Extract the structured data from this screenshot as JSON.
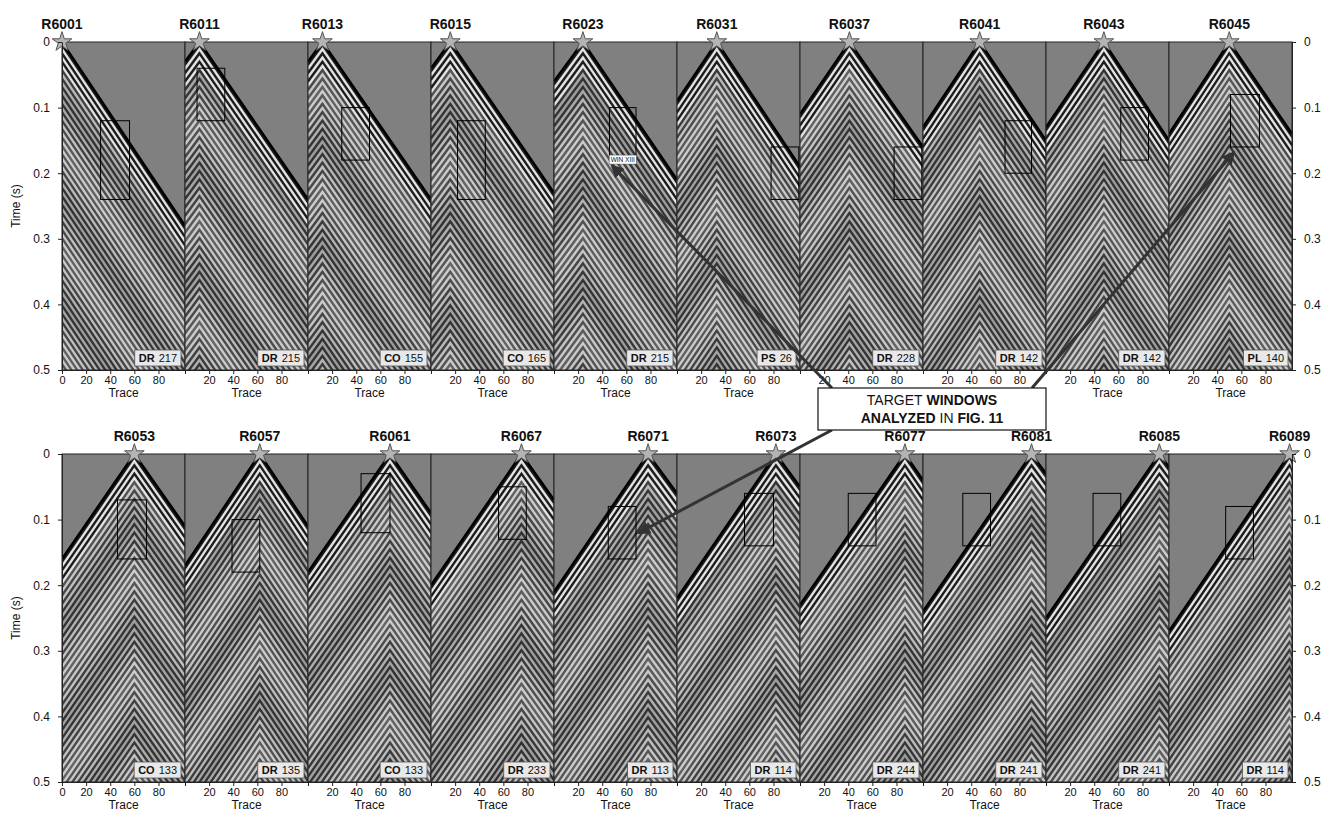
{
  "chart_data": {
    "type": "seismic_gathers",
    "xlabel": "Trace",
    "ylabel": "Time (s)",
    "xlim": [
      0,
      102
    ],
    "ylim": [
      0,
      0.5
    ],
    "xticks": [
      0,
      20,
      40,
      60,
      80
    ],
    "yticks": [
      0,
      0.1,
      0.2,
      0.3,
      0.4,
      0.5
    ],
    "panels": [
      {
        "title": "R6001",
        "source_trace": 0,
        "code": "DR",
        "number": 217,
        "first_break": {
          "x": [
            0,
            0,
            102
          ],
          "values": [
            0,
            0,
            0.28
          ]
        },
        "window": {
          "traces": [
            32,
            56
          ],
          "times": [
            0.12,
            0.24
          ]
        }
      },
      {
        "title": "R6011",
        "source_trace": 12,
        "code": "DR",
        "number": 215,
        "first_break": {
          "x": [
            0,
            12,
            102
          ],
          "values": [
            0.03,
            0,
            0.24
          ]
        },
        "window": {
          "traces": [
            10,
            33
          ],
          "times": [
            0.04,
            0.12
          ]
        }
      },
      {
        "title": "R6013",
        "source_trace": 12,
        "code": "CO",
        "number": 155,
        "first_break": {
          "x": [
            0,
            12,
            102
          ],
          "values": [
            0.03,
            0,
            0.24
          ]
        },
        "window": {
          "traces": [
            28,
            51
          ],
          "times": [
            0.1,
            0.18
          ]
        }
      },
      {
        "title": "R6015",
        "source_trace": 16,
        "code": "CO",
        "number": 165,
        "first_break": {
          "x": [
            0,
            16,
            102
          ],
          "values": [
            0.04,
            0,
            0.23
          ]
        },
        "window": {
          "traces": [
            22,
            45
          ],
          "times": [
            0.12,
            0.24
          ]
        }
      },
      {
        "title": "R6023",
        "source_trace": 24,
        "code": "DR",
        "number": 215,
        "first_break": {
          "x": [
            0,
            24,
            102
          ],
          "values": [
            0.06,
            0,
            0.21
          ]
        },
        "window": {
          "traces": [
            46,
            68
          ],
          "times": [
            0.1,
            0.18
          ],
          "label": "WIN XIII"
        }
      },
      {
        "title": "R6031",
        "source_trace": 33,
        "code": "PS",
        "number": 26,
        "first_break": {
          "x": [
            0,
            33,
            102
          ],
          "values": [
            0.09,
            0,
            0.19
          ]
        },
        "window": {
          "traces": [
            78,
            101
          ],
          "times": [
            0.16,
            0.24
          ]
        }
      },
      {
        "title": "R6037",
        "source_trace": 41,
        "code": "DR",
        "number": 228,
        "first_break": {
          "x": [
            0,
            41,
            102
          ],
          "values": [
            0.11,
            0,
            0.16
          ]
        },
        "window": {
          "traces": [
            78,
            101
          ],
          "times": [
            0.16,
            0.24
          ]
        }
      },
      {
        "title": "R6041",
        "source_trace": 47,
        "code": "DR",
        "number": 142,
        "first_break": {
          "x": [
            0,
            47,
            102
          ],
          "values": [
            0.13,
            0,
            0.15
          ]
        },
        "window": {
          "traces": [
            68,
            90
          ],
          "times": [
            0.12,
            0.2
          ]
        }
      },
      {
        "title": "R6043",
        "source_trace": 48,
        "code": "DR",
        "number": 142,
        "first_break": {
          "x": [
            0,
            48,
            102
          ],
          "values": [
            0.13,
            0,
            0.15
          ]
        },
        "window": {
          "traces": [
            62,
            85
          ],
          "times": [
            0.1,
            0.18
          ]
        }
      },
      {
        "title": "R6045",
        "source_trace": 50,
        "code": "PL",
        "number": 140,
        "first_break": {
          "x": [
            0,
            50,
            102
          ],
          "values": [
            0.14,
            0,
            0.14
          ]
        },
        "window": {
          "traces": [
            51,
            75
          ],
          "times": [
            0.08,
            0.16
          ]
        }
      },
      {
        "title": "R6053",
        "source_trace": 60,
        "code": "CO",
        "number": 133,
        "first_break": {
          "x": [
            0,
            60,
            102
          ],
          "values": [
            0.16,
            0,
            0.11
          ]
        },
        "window": {
          "traces": [
            46,
            70
          ],
          "times": [
            0.07,
            0.16
          ]
        }
      },
      {
        "title": "R6057",
        "source_trace": 62,
        "code": "DR",
        "number": 135,
        "first_break": {
          "x": [
            0,
            62,
            102
          ],
          "values": [
            0.17,
            0,
            0.11
          ]
        },
        "window": {
          "traces": [
            39,
            62
          ],
          "times": [
            0.1,
            0.18
          ]
        }
      },
      {
        "title": "R6061",
        "source_trace": 68,
        "code": "CO",
        "number": 133,
        "first_break": {
          "x": [
            0,
            68,
            102
          ],
          "values": [
            0.18,
            0,
            0.09
          ]
        },
        "window": {
          "traces": [
            44,
            68
          ],
          "times": [
            0.03,
            0.12
          ]
        }
      },
      {
        "title": "R6067",
        "source_trace": 75,
        "code": "DR",
        "number": 233,
        "first_break": {
          "x": [
            0,
            75,
            102
          ],
          "values": [
            0.2,
            0,
            0.07
          ]
        },
        "window": {
          "traces": [
            56,
            79
          ],
          "times": [
            0.05,
            0.13
          ]
        }
      },
      {
        "title": "R6071",
        "source_trace": 78,
        "code": "DR",
        "number": 113,
        "first_break": {
          "x": [
            0,
            78,
            102
          ],
          "values": [
            0.21,
            0,
            0.06
          ]
        },
        "window": {
          "traces": [
            45,
            68
          ],
          "times": [
            0.08,
            0.16
          ]
        }
      },
      {
        "title": "R6073",
        "source_trace": 82,
        "code": "DR",
        "number": 114,
        "first_break": {
          "x": [
            0,
            82,
            102
          ],
          "values": [
            0.22,
            0,
            0.05
          ]
        },
        "window": {
          "traces": [
            56,
            80
          ],
          "times": [
            0.06,
            0.14
          ]
        }
      },
      {
        "title": "R6077",
        "source_trace": 87,
        "code": "DR",
        "number": 244,
        "first_break": {
          "x": [
            0,
            87,
            102
          ],
          "values": [
            0.23,
            0,
            0.04
          ]
        },
        "window": {
          "traces": [
            40,
            63
          ],
          "times": [
            0.06,
            0.14
          ]
        }
      },
      {
        "title": "R6081",
        "source_trace": 90,
        "code": "DR",
        "number": 241,
        "first_break": {
          "x": [
            0,
            90,
            102
          ],
          "values": [
            0.24,
            0,
            0.03
          ]
        },
        "window": {
          "traces": [
            33,
            56
          ],
          "times": [
            0.06,
            0.14
          ]
        }
      },
      {
        "title": "R6085",
        "source_trace": 94,
        "code": "DR",
        "number": 241,
        "first_break": {
          "x": [
            0,
            94,
            102
          ],
          "values": [
            0.25,
            0,
            0.02
          ]
        },
        "window": {
          "traces": [
            39,
            62
          ],
          "times": [
            0.06,
            0.14
          ]
        }
      },
      {
        "title": "R6089",
        "source_trace": 100,
        "code": "DR",
        "number": 114,
        "first_break": {
          "x": [
            0,
            100,
            102
          ],
          "values": [
            0.27,
            0,
            0.01
          ]
        },
        "window": {
          "traces": [
            47,
            70
          ],
          "times": [
            0.08,
            0.16
          ]
        }
      }
    ],
    "annotation": {
      "text": "TARGET WINDOWS ANALYZED IN FIG. 11",
      "targets": [
        "R6023",
        "R6045",
        "R6071"
      ]
    }
  }
}
